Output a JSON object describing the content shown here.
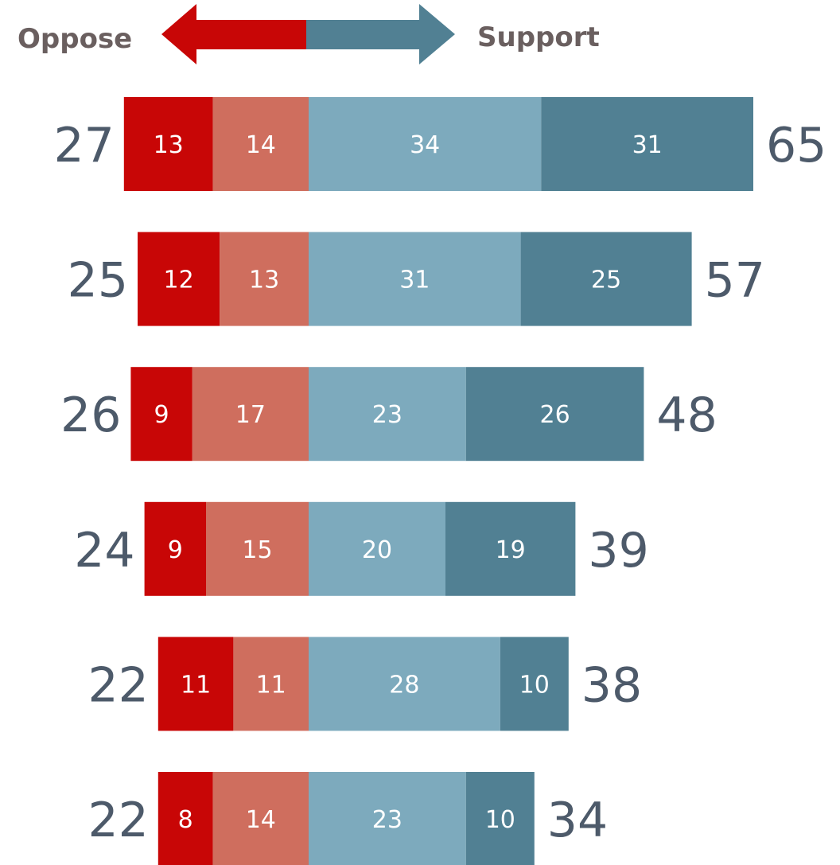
{
  "legend": {
    "oppose_label": "Oppose",
    "support_label": "Support"
  },
  "colors": {
    "strongly_oppose": "#c80606",
    "somewhat_oppose": "#cf6e5e",
    "somewhat_support": "#7daabd",
    "strongly_support": "#518093",
    "total_text": "#4d5a6a",
    "legend_text": "#6a5f5f"
  },
  "chart_data": {
    "type": "bar",
    "orientation": "horizontal-diverging",
    "stacked": true,
    "series": [
      {
        "values": [
          13,
          12,
          9,
          9,
          11,
          8
        ]
      },
      {
        "values": [
          14,
          13,
          17,
          15,
          11,
          14
        ]
      },
      {
        "values": [
          34,
          31,
          23,
          20,
          28,
          23
        ]
      },
      {
        "values": [
          31,
          25,
          26,
          19,
          10,
          10
        ]
      }
    ],
    "oppose_totals": [
      27,
      25,
      26,
      24,
      22,
      22
    ],
    "support_totals": [
      65,
      57,
      48,
      39,
      38,
      34
    ]
  }
}
